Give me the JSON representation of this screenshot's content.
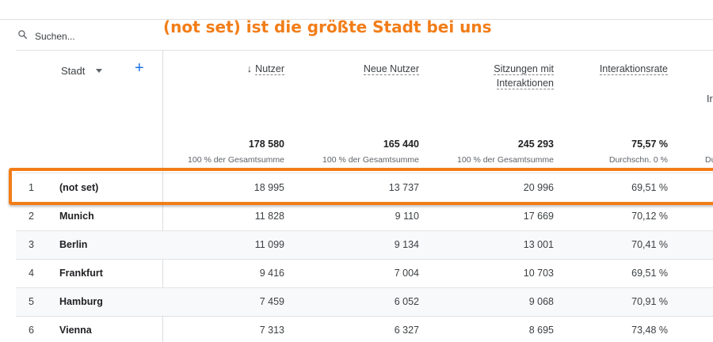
{
  "search": {
    "placeholder": "Suchen..."
  },
  "annotation": {
    "text": "(not set) ist die größte Stadt bei uns",
    "color": "#f27d18"
  },
  "dimension": {
    "label": "Stadt"
  },
  "add_label": "+",
  "columns": [
    {
      "label_line1": "Nutzer",
      "label_line2": "",
      "sorted": true,
      "sort_arrow": "↓",
      "total": "178 580",
      "total_sub": "100 % der Gesamtsumme"
    },
    {
      "label_line1": "Neue Nutzer",
      "label_line2": "",
      "sorted": false,
      "total": "165 440",
      "total_sub": "100 % der Gesamtsumme"
    },
    {
      "label_line1": "Sitzungen mit",
      "label_line2": "Interaktionen",
      "sorted": false,
      "total": "245 293",
      "total_sub": "100 % der Gesamtsumme"
    },
    {
      "label_line1": "Interaktionsrate",
      "label_line2": "",
      "sorted": false,
      "total": "75,57 %",
      "total_sub": "Durchschn. 0 %"
    }
  ],
  "cut_column": {
    "label_partial": "Ir",
    "sub_partial": "Du"
  },
  "rows": [
    {
      "index": "1",
      "city": "(not set)",
      "nutzer": "18 995",
      "neue_nutzer": "13 737",
      "sitzungen": "20 996",
      "rate": "69,51 %"
    },
    {
      "index": "2",
      "city": "Munich",
      "nutzer": "11 828",
      "neue_nutzer": "9 110",
      "sitzungen": "17 669",
      "rate": "70,12 %"
    },
    {
      "index": "3",
      "city": "Berlin",
      "nutzer": "11 099",
      "neue_nutzer": "9 134",
      "sitzungen": "13 001",
      "rate": "70,41 %"
    },
    {
      "index": "4",
      "city": "Frankfurt",
      "nutzer": "9 416",
      "neue_nutzer": "7 004",
      "sitzungen": "10 703",
      "rate": "69,51 %"
    },
    {
      "index": "5",
      "city": "Hamburg",
      "nutzer": "7 459",
      "neue_nutzer": "6 052",
      "sitzungen": "9 068",
      "rate": "70,91 %"
    },
    {
      "index": "6",
      "city": "Vienna",
      "nutzer": "7 313",
      "neue_nutzer": "6 327",
      "sitzungen": "8 695",
      "rate": "73,48 %"
    }
  ]
}
